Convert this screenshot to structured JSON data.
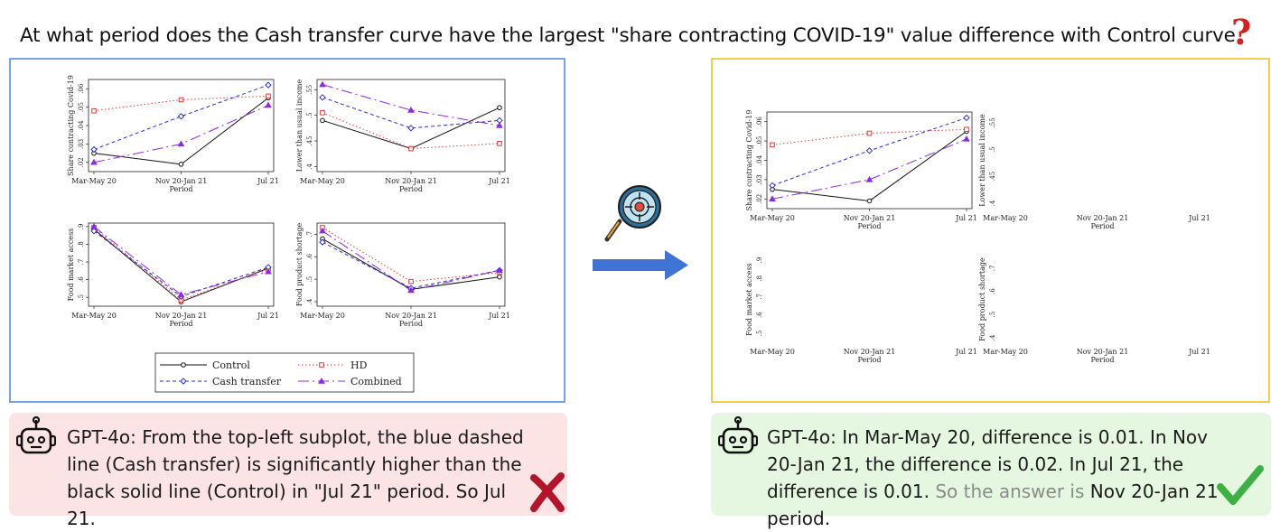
{
  "question": "At what period does the Cash transfer curve have the largest \"share contracting COVID-19\" value difference with Control curve",
  "icons": {
    "question": "question-mark-icon",
    "middle": "magnifier-target-icon",
    "arrow": "right-arrow-icon",
    "bot": "robot-icon",
    "wrong": "cross-mark-icon",
    "right": "check-mark-icon"
  },
  "colors": {
    "left_frame": "#7aa3e5",
    "right_frame": "#f2cf4a",
    "wrong_bg": "#fce4e4",
    "right_bg": "#e6f7e1",
    "arrow": "#3f74d4",
    "control": "#111111",
    "hd": "#e03a3a",
    "cash": "#2b2be0",
    "combined": "#8a2be2"
  },
  "period_label": "Period",
  "chart_data": [
    {
      "type": "line",
      "categories": [
        "Mar-May 20",
        "Nov 20-Jan 21",
        "Jul 21"
      ],
      "ylabel": "Share contracting Covid-19",
      "yticks": [
        ".02",
        ".03",
        ".04",
        ".05",
        ".06"
      ],
      "ylim": [
        0.015,
        0.065
      ],
      "series": [
        {
          "name": "Control",
          "values": [
            0.025,
            0.019,
            0.055
          ]
        },
        {
          "name": "HD",
          "values": [
            0.048,
            0.054,
            0.056
          ]
        },
        {
          "name": "Cash transfer",
          "values": [
            0.027,
            0.045,
            0.062
          ]
        },
        {
          "name": "Combined",
          "values": [
            0.02,
            0.03,
            0.051
          ]
        }
      ]
    },
    {
      "type": "line",
      "categories": [
        "Mar-May 20",
        "Nov 20-Jan 21",
        "Jul 21"
      ],
      "ylabel": "Lower than usual income",
      "yticks": [
        ".4",
        ".45",
        ".5",
        ".55"
      ],
      "ylim": [
        0.39,
        0.57
      ],
      "series": [
        {
          "name": "Control",
          "values": [
            0.49,
            0.435,
            0.515
          ]
        },
        {
          "name": "HD",
          "values": [
            0.505,
            0.435,
            0.445
          ]
        },
        {
          "name": "Cash transfer",
          "values": [
            0.535,
            0.475,
            0.49
          ]
        },
        {
          "name": "Combined",
          "values": [
            0.56,
            0.51,
            0.48
          ]
        }
      ]
    },
    {
      "type": "line",
      "categories": [
        "Mar-May 20",
        "Nov 20-Jan 21",
        "Jul 21"
      ],
      "ylabel": "Food market access",
      "yticks": [
        ".5",
        ".6",
        ".7",
        ".8",
        ".9"
      ],
      "ylim": [
        0.45,
        0.92
      ],
      "series": [
        {
          "name": "Control",
          "values": [
            0.885,
            0.475,
            0.665
          ]
        },
        {
          "name": "HD",
          "values": [
            0.895,
            0.485,
            0.66
          ]
        },
        {
          "name": "Cash transfer",
          "values": [
            0.875,
            0.505,
            0.67
          ]
        },
        {
          "name": "Combined",
          "values": [
            0.9,
            0.515,
            0.645
          ]
        }
      ]
    },
    {
      "type": "line",
      "categories": [
        "Mar-May 20",
        "Nov 20-Jan 21",
        "Jul 21"
      ],
      "ylabel": "Food product shortage",
      "yticks": [
        ".4",
        ".5",
        ".6",
        ".7"
      ],
      "ylim": [
        0.38,
        0.75
      ],
      "series": [
        {
          "name": "Control",
          "values": [
            0.68,
            0.455,
            0.51
          ]
        },
        {
          "name": "HD",
          "values": [
            0.73,
            0.49,
            0.53
          ]
        },
        {
          "name": "Cash transfer",
          "values": [
            0.665,
            0.46,
            0.54
          ]
        },
        {
          "name": "Combined",
          "values": [
            0.715,
            0.45,
            0.54
          ]
        }
      ]
    }
  ],
  "legend": [
    "Control",
    "HD",
    "Cash transfer",
    "Combined"
  ],
  "answer_wrong": "GPT-4o: From the top-left subplot, the blue dashed line (Cash transfer) is significantly higher than the black solid line (Control) in \"Jul 21\" period. So Jul 21.",
  "answer_right_main": "GPT-4o: In Mar-May 20, difference is 0.01. In Nov 20-Jan 21, the difference is 0.02. In Jul 21, the difference is 0.01. ",
  "answer_right_gray": "So the answer is",
  "answer_right_end": " Nov 20-Jan 21 period."
}
